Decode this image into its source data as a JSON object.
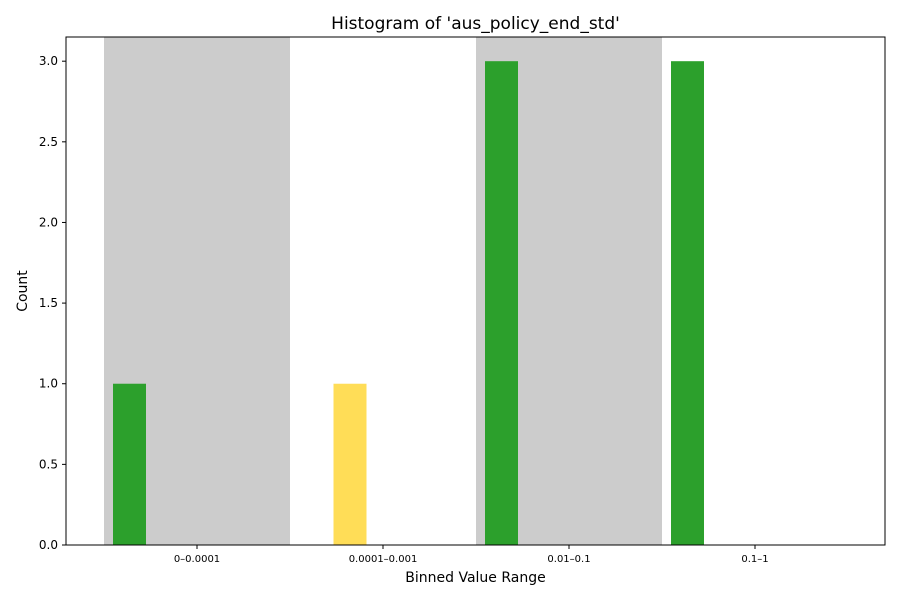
{
  "chart_data": {
    "type": "bar",
    "title": "Histogram of 'aus_policy_end_std'",
    "xlabel": "Binned Value Range",
    "ylabel": "Count",
    "ylim": [
      0,
      3.15
    ],
    "yticks": [
      "0.0",
      "0.5",
      "1.0",
      "1.5",
      "2.0",
      "2.5",
      "3.0"
    ],
    "categories": [
      "0–0.0001",
      "0.0001–0.001",
      "0.01–0.1",
      "0.1–1"
    ],
    "shaded_categories": [
      "0–0.0001",
      "0.01–0.1"
    ],
    "bars": [
      {
        "category": "0–0.0001",
        "value": 1,
        "color": "#2ca02c"
      },
      {
        "category": "0.0001–0.001",
        "value": 1,
        "color": "#ffdd57"
      },
      {
        "category": "0.01–0.1",
        "value": 3,
        "color": "#2ca02c"
      },
      {
        "category": "0.1–1",
        "value": 3,
        "color": "#2ca02c"
      }
    ],
    "shade_color": "#cccccc",
    "grid": false
  }
}
